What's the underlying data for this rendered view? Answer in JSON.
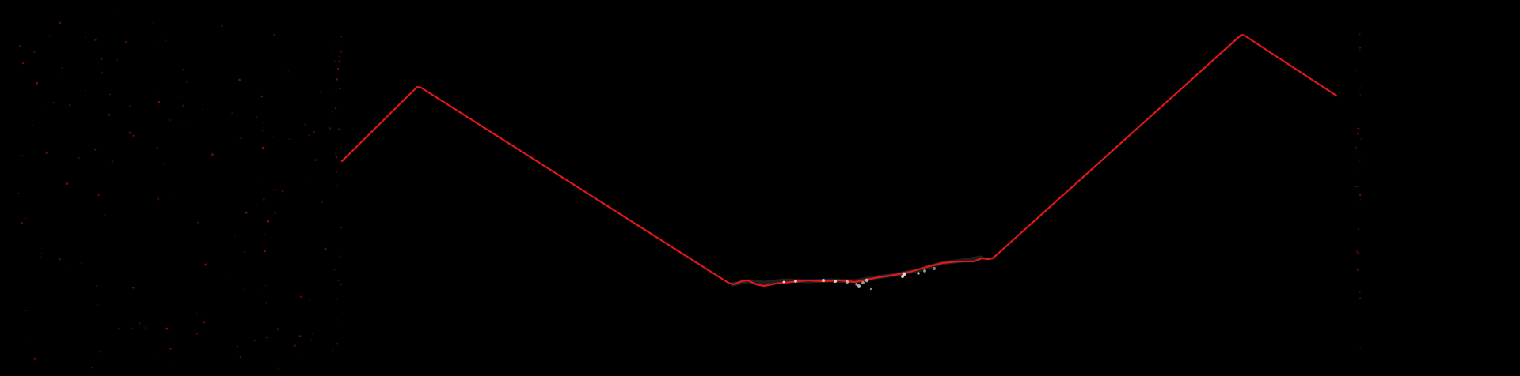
{
  "colors": {
    "background": "#000000",
    "trace": "#e01818",
    "noise": "#c01414",
    "highlight": "#e8e8e8"
  }
}
